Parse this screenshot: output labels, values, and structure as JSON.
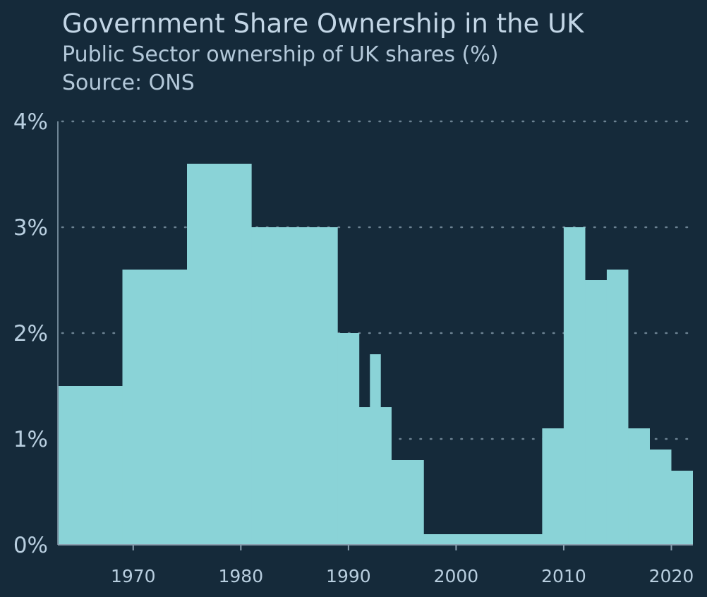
{
  "title": "Government Share Ownership in the UK",
  "subtitle": "Public Sector ownership of UK shares (%)",
  "source": "Source: ONS",
  "colors": {
    "background": "#152a3a",
    "fill": "#8ad3d7",
    "grid": "#8aa0b0",
    "text": "#b8cedf"
  },
  "chart_data": {
    "type": "area",
    "step": true,
    "title": "Government Share Ownership in the UK",
    "subtitle": "Public Sector ownership of UK shares (%)",
    "xlabel": "",
    "ylabel": "",
    "xlim": [
      1963,
      2022
    ],
    "ylim": [
      0,
      4
    ],
    "grid": "horizontal-dotted",
    "x_ticks": [
      1970,
      1980,
      1990,
      2000,
      2010,
      2020
    ],
    "y_ticks": [
      {
        "value": 0,
        "label": "0%"
      },
      {
        "value": 1,
        "label": "1%"
      },
      {
        "value": 2,
        "label": "2%"
      },
      {
        "value": 3,
        "label": "3%"
      },
      {
        "value": 4,
        "label": "4%"
      }
    ],
    "series": [
      {
        "points": [
          {
            "x": 1963,
            "y": 1.5
          },
          {
            "x": 1969,
            "y": 2.6
          },
          {
            "x": 1975,
            "y": 3.6
          },
          {
            "x": 1981,
            "y": 3.0
          },
          {
            "x": 1989,
            "y": 2.0
          },
          {
            "x": 1991,
            "y": 1.3
          },
          {
            "x": 1992,
            "y": 1.8
          },
          {
            "x": 1993,
            "y": 1.3
          },
          {
            "x": 1994,
            "y": 0.8
          },
          {
            "x": 1997,
            "y": 0.1
          },
          {
            "x": 2008,
            "y": 1.1
          },
          {
            "x": 2010,
            "y": 3.0
          },
          {
            "x": 2012,
            "y": 2.5
          },
          {
            "x": 2014,
            "y": 2.6
          },
          {
            "x": 2016,
            "y": 1.1
          },
          {
            "x": 2018,
            "y": 0.9
          },
          {
            "x": 2020,
            "y": 0.7
          }
        ]
      }
    ]
  }
}
